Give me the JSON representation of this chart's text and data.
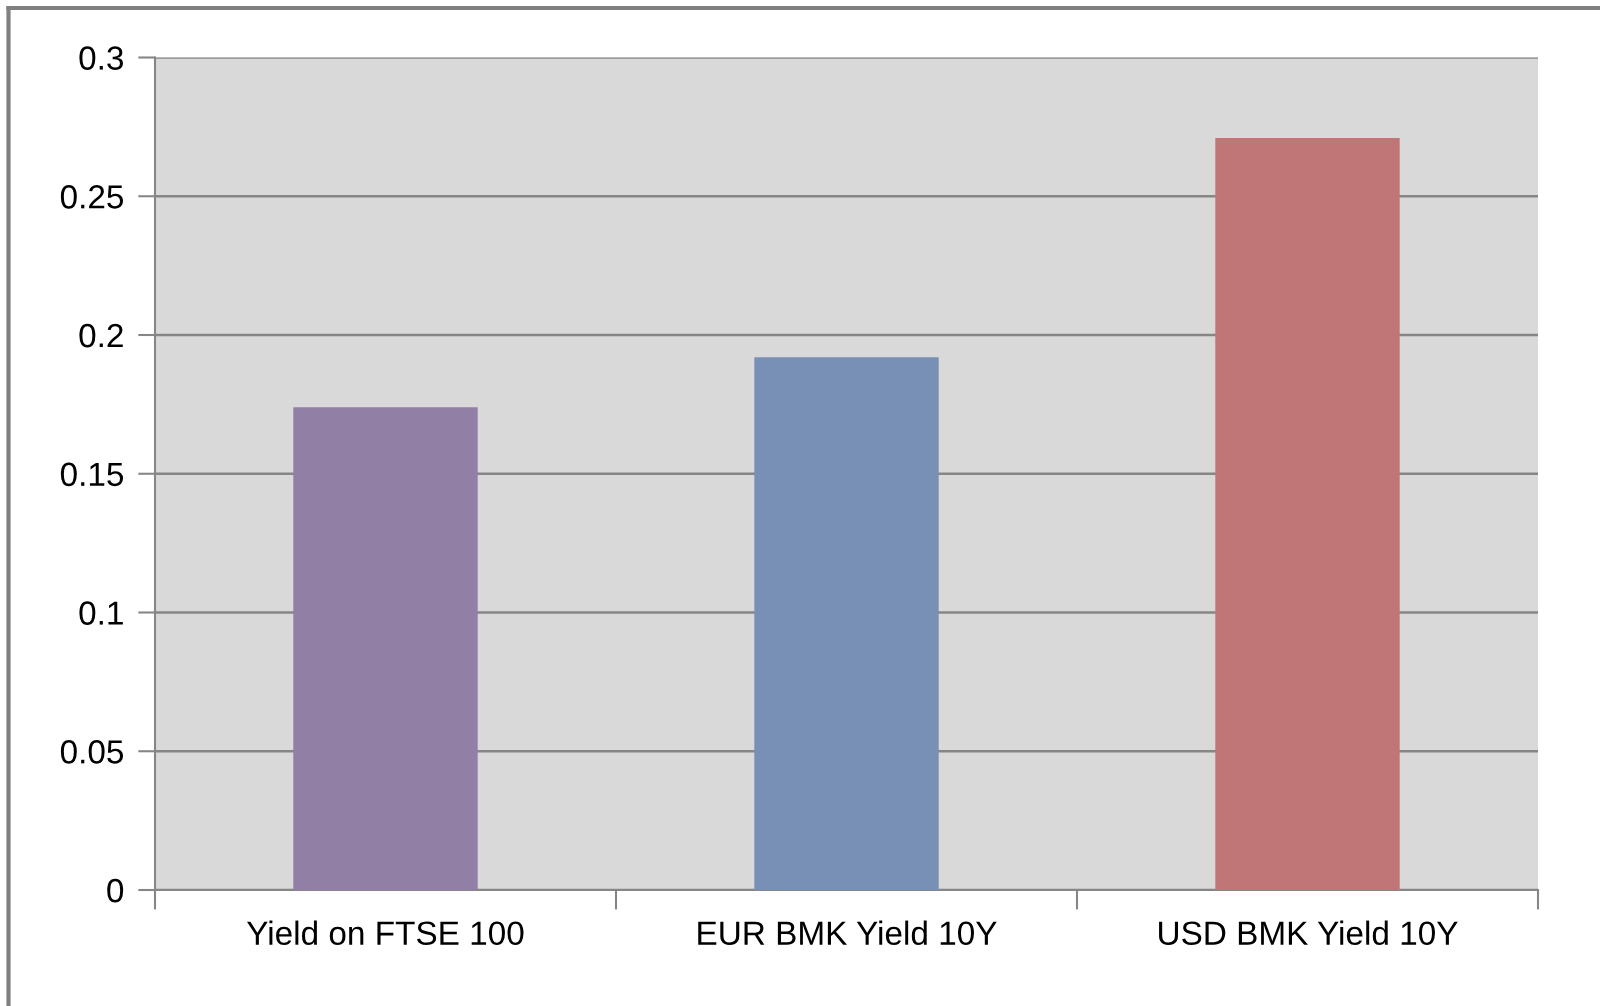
{
  "chart_data": {
    "type": "bar",
    "categories": [
      "Yield on FTSE 100",
      "EUR BMK Yield 10Y",
      "USD BMK Yield 10Y"
    ],
    "values": [
      0.174,
      0.192,
      0.271
    ],
    "colors": [
      "#927fa6",
      "#7890b5",
      "#c07676"
    ],
    "ylim": [
      0,
      0.3
    ],
    "yticks": [
      0,
      0.05,
      0.1,
      0.15,
      0.2,
      0.25,
      0.3
    ],
    "grid": "y",
    "legend": false
  }
}
